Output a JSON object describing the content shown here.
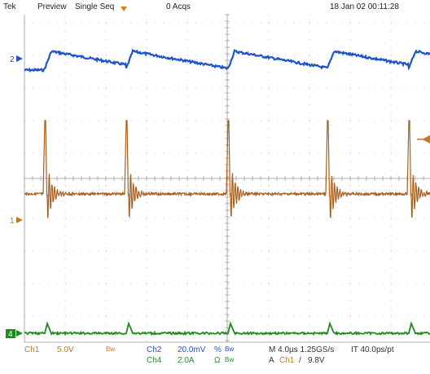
{
  "header": {
    "brand": "Tek",
    "mode_preview": "Preview",
    "mode_single_seq": "Single Seq",
    "acq_count": "0 Acqs",
    "datetime": "18 Jan 02 00:11:28"
  },
  "channel_markers": {
    "ch2": "2",
    "ch1": "1",
    "ch4": "4"
  },
  "footer": {
    "ch1_label": "Ch1",
    "ch1_scale": "5.0V",
    "ch1_bw": "Bw",
    "ch2_label": "Ch2",
    "ch2_scale": "20.0mV",
    "ch2_coupling": "%",
    "ch2_bw": "Bw",
    "ch4_label": "Ch4",
    "ch4_scale": "2.0A",
    "ch4_coupling": "Ω",
    "ch4_bw": "Bw",
    "timebase": "M 4.0µs 1.25GS/s",
    "trigger_source_prefix": "A",
    "trigger_source": "Ch1",
    "trigger_slope": "/",
    "trigger_level": "9.8V",
    "interp": "IT 40.0ps/pt"
  },
  "colors": {
    "ch1": "#a8601f",
    "ch2": "#1f55c8",
    "ch4": "#1f8a1f",
    "grid": "#9a9a9a",
    "trigger_marker": "#e07a1a"
  }
}
